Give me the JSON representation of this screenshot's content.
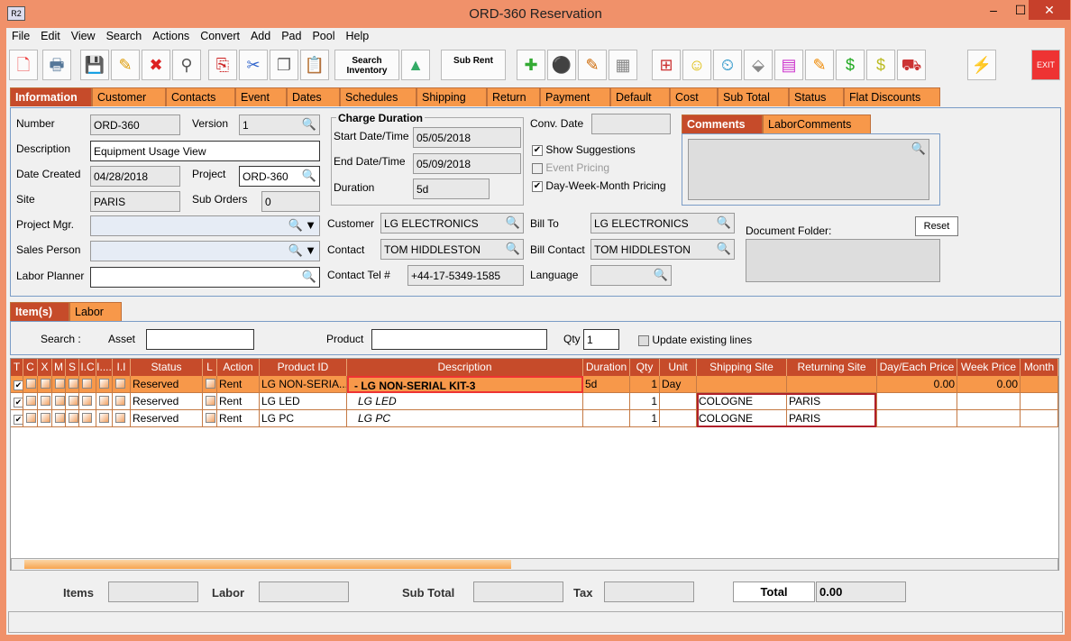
{
  "window": {
    "title": "ORD-360 Reservation",
    "icon": "R2",
    "minimize": "–",
    "maximize": "☐",
    "close": "✕"
  },
  "menu": [
    "File",
    "Edit",
    "View",
    "Search",
    "Actions",
    "Convert",
    "Add",
    "Pad",
    "Pool",
    "Help"
  ],
  "toolbar": {
    "search_inventory": "Search Inventory",
    "sub_rent": "Sub Rent",
    "exit": "EXIT",
    "icons": [
      "new-document-icon",
      "print-icon",
      "save-icon",
      "edit-pencil-icon",
      "delete-x-icon",
      "binoculars-icon",
      "copy-order-icon",
      "cut-scissors-icon",
      "copy-icon",
      "paste-icon"
    ]
  },
  "tabs": [
    "Information",
    "Customer",
    "Contacts",
    "Event",
    "Dates",
    "Schedules",
    "Shipping",
    "Return",
    "Payment",
    "Default",
    "Cost",
    "Sub Total",
    "Status",
    "Flat Discounts"
  ],
  "info": {
    "number_label": "Number",
    "number": "ORD-360",
    "version_label": "Version",
    "version": "1",
    "description_label": "Description",
    "description": "Equipment Usage View",
    "date_created_label": "Date Created",
    "date_created": "04/28/2018",
    "project_label": "Project",
    "project": "ORD-360",
    "site_label": "Site",
    "site": "PARIS",
    "sub_orders_label": "Sub Orders",
    "sub_orders": "0",
    "project_mgr_label": "Project Mgr.",
    "sales_person_label": "Sales Person",
    "labor_planner_label": "Labor Planner",
    "charge_duration_label": "Charge Duration",
    "start_label": "Start Date/Time",
    "start": "05/05/2018",
    "end_label": "End Date/Time",
    "end": "05/09/2018",
    "duration_label": "Duration",
    "duration": "5d",
    "customer_label": "Customer",
    "customer": "LG ELECTRONICS",
    "contact_label": "Contact",
    "contact": "TOM HIDDLESTON",
    "contact_tel_label": "Contact Tel #",
    "contact_tel": "+44-17-5349-1585",
    "conv_date_label": "Conv. Date",
    "show_suggestions": "Show Suggestions",
    "event_pricing": "Event Pricing",
    "dwm_pricing": "Day-Week-Month Pricing",
    "bill_to_label": "Bill To",
    "bill_to": "LG ELECTRONICS",
    "bill_contact_label": "Bill Contact",
    "bill_contact": "TOM HIDDLESTON",
    "language_label": "Language",
    "comments_tab": "Comments",
    "labor_comments_tab": "LaborComments",
    "document_folder_label": "Document Folder:",
    "reset": "Reset"
  },
  "item_tabs": [
    "Item(s)",
    "Labor"
  ],
  "search": {
    "label": "Search :",
    "asset_label": "Asset",
    "product_label": "Product",
    "qty_label": "Qty",
    "qty": "1",
    "update_existing": "Update existing lines"
  },
  "grid": {
    "headers": [
      "T",
      "C",
      "X",
      "M",
      "S",
      "I.C",
      "I....",
      "I.I",
      "Status",
      "L",
      "Action",
      "Product ID",
      "Description",
      "Duration",
      "Qty",
      "Unit",
      "Shipping Site",
      "Returning Site",
      "Day/Each Price",
      "Week Price",
      "Month"
    ],
    "rows": [
      {
        "status": "Reserved",
        "action": "Rent",
        "product_id": "LG NON-SERIA...",
        "description": "-  LG NON-SERIAL KIT-3",
        "duration": "5d",
        "qty": "1",
        "unit": "Day",
        "shipping": "",
        "returning": "",
        "day_price": "0.00",
        "week_price": "0.00",
        "selected": true
      },
      {
        "status": "Reserved",
        "action": "Rent",
        "product_id": "LG LED",
        "description": "LG LED",
        "duration": "",
        "qty": "1",
        "unit": "",
        "shipping": "COLOGNE",
        "returning": "PARIS",
        "day_price": "",
        "week_price": "",
        "selected": false
      },
      {
        "status": "Reserved",
        "action": "Rent",
        "product_id": "LG PC",
        "description": "LG PC",
        "duration": "",
        "qty": "1",
        "unit": "",
        "shipping": "COLOGNE",
        "returning": "PARIS",
        "day_price": "",
        "week_price": "",
        "selected": false
      }
    ]
  },
  "totals": {
    "items_label": "Items",
    "labor_label": "Labor",
    "sub_total_label": "Sub Total",
    "tax_label": "Tax",
    "total_label": "Total",
    "total": "0.00"
  },
  "colors": {
    "accent": "#f7984a",
    "active_tab": "#c64b2a",
    "frame": "#f0916a"
  }
}
